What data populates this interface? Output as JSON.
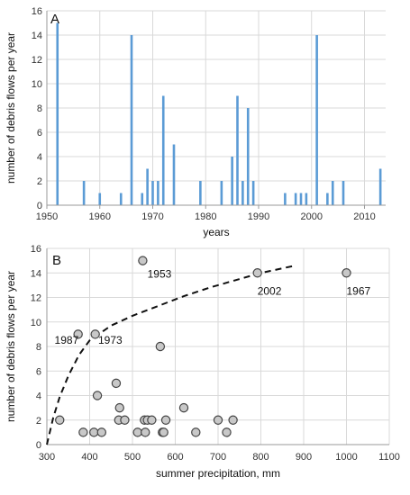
{
  "chart_data": [
    {
      "type": "bar",
      "panel_label": "A",
      "title": "",
      "xlabel": "years",
      "ylabel": "number of debris flows per year",
      "xlim": [
        1950,
        2014
      ],
      "ylim": [
        0,
        16
      ],
      "xticks": [
        1950,
        1960,
        1970,
        1980,
        1990,
        2000,
        2010
      ],
      "yticks": [
        0,
        2,
        4,
        6,
        8,
        10,
        12,
        14,
        16
      ],
      "grid": true,
      "bar_color": "#5b9bd5",
      "x": [
        1952,
        1957,
        1960,
        1964,
        1966,
        1968,
        1969,
        1970,
        1971,
        1972,
        1974,
        1979,
        1983,
        1985,
        1986,
        1987,
        1988,
        1989,
        1995,
        1997,
        1998,
        1999,
        2001,
        2003,
        2004,
        2006,
        2013
      ],
      "values": [
        15,
        2,
        1,
        1,
        14,
        1,
        3,
        2,
        2,
        9,
        5,
        2,
        2,
        4,
        9,
        2,
        8,
        2,
        1,
        1,
        1,
        1,
        14,
        1,
        2,
        2,
        3
      ]
    },
    {
      "type": "scatter",
      "panel_label": "B",
      "title": "",
      "xlabel": "summer precipitation, mm",
      "ylabel": "number of debris flows per year",
      "xlim": [
        300,
        1100
      ],
      "ylim": [
        0,
        16
      ],
      "xticks": [
        300,
        400,
        500,
        600,
        700,
        800,
        900,
        1000,
        1100
      ],
      "yticks": [
        0,
        2,
        4,
        6,
        8,
        10,
        12,
        14,
        16
      ],
      "grid": true,
      "marker_fill": "#c8c8c8",
      "marker_stroke": "#444444",
      "points": [
        [
          330,
          2
        ],
        [
          373,
          9
        ],
        [
          385,
          1
        ],
        [
          410,
          1
        ],
        [
          413,
          9
        ],
        [
          418,
          4
        ],
        [
          428,
          1
        ],
        [
          462,
          5
        ],
        [
          468,
          2
        ],
        [
          470,
          3
        ],
        [
          482,
          2
        ],
        [
          512,
          1
        ],
        [
          524,
          15
        ],
        [
          528,
          2
        ],
        [
          530,
          1
        ],
        [
          535,
          2
        ],
        [
          545,
          2
        ],
        [
          565,
          8
        ],
        [
          570,
          1
        ],
        [
          573,
          1
        ],
        [
          578,
          2
        ],
        [
          620,
          3
        ],
        [
          648,
          1
        ],
        [
          700,
          2
        ],
        [
          720,
          1
        ],
        [
          735,
          2
        ],
        [
          792,
          14
        ],
        [
          1000,
          14
        ]
      ],
      "trend_line": {
        "style": "dashed",
        "x": [
          300,
          315,
          330,
          350,
          375,
          400,
          450,
          500,
          560,
          620,
          680,
          740,
          800,
          880
        ],
        "y": [
          0,
          2.2,
          3.9,
          5.6,
          7.3,
          8.5,
          9.7,
          10.5,
          11.3,
          12.1,
          12.8,
          13.4,
          14.0,
          14.6
        ]
      },
      "annotations": [
        {
          "text": "1953",
          "x": 535,
          "y": 13.9
        },
        {
          "text": "2002",
          "x": 792,
          "y": 12.5
        },
        {
          "text": "1967",
          "x": 1000,
          "y": 12.5
        },
        {
          "text": "1987",
          "x": 318,
          "y": 8.5
        },
        {
          "text": "1973",
          "x": 420,
          "y": 8.5
        }
      ]
    }
  ]
}
